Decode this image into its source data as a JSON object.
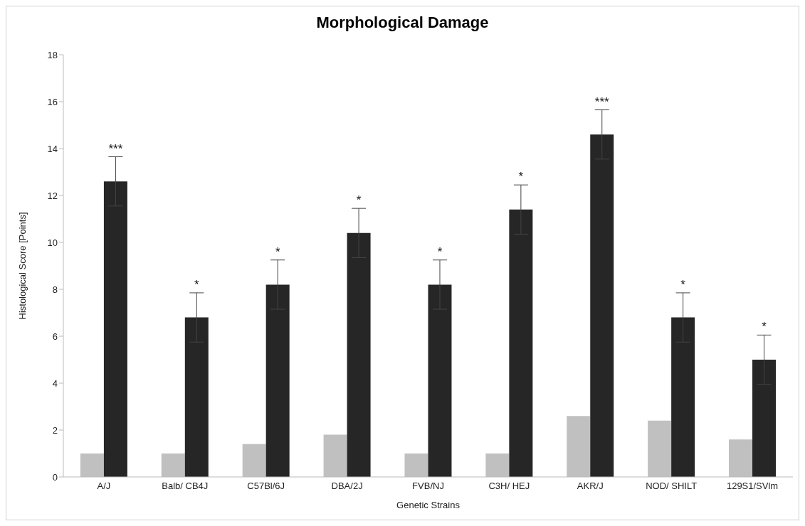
{
  "chart_data": {
    "type": "bar",
    "title": "Morphological Damage",
    "xlabel": "Genetic Strains",
    "ylabel": "Histological Score [Points]",
    "categories": [
      "A/J",
      "Balb/ CB4J",
      "C57Bl/6J",
      "DBA/2J",
      "FVB/NJ",
      "C3H/ HEJ",
      "AKR/J",
      "NOD/ SHILT",
      "129S1/SVlm"
    ],
    "series": [
      {
        "color": "#c0c0c0",
        "values": [
          1,
          1,
          1.4,
          1.8,
          1,
          1,
          2.6,
          2.4,
          1.6
        ]
      },
      {
        "color": "#262626",
        "values": [
          12.6,
          6.8,
          8.2,
          10.4,
          8.2,
          11.4,
          14.6,
          6.8,
          5.0
        ],
        "errors": [
          1.05,
          1.05,
          1.05,
          1.05,
          1.05,
          1.05,
          1.05,
          1.05,
          1.05
        ]
      }
    ],
    "annotations": [
      {
        "text": "***",
        "x": "A/J",
        "y": 12.6
      },
      {
        "text": "*",
        "x": "Balb/ CB4J",
        "y": 6.8
      },
      {
        "text": "*",
        "x": "C57Bl/6J",
        "y": 8.2
      },
      {
        "text": "*",
        "x": "DBA/2J",
        "y": 10.4
      },
      {
        "text": "*",
        "x": "FVB/NJ",
        "y": 8.2
      },
      {
        "text": "*",
        "x": "C3H/ HEJ",
        "y": 11.4
      },
      {
        "text": "***",
        "x": "AKR/J",
        "y": 14.6
      },
      {
        "text": "*",
        "x": "NOD/ SHILT",
        "y": 6.8
      },
      {
        "text": "*",
        "x": "129S1/SVlm",
        "y": 5.0
      }
    ],
    "ylim": [
      0,
      18
    ],
    "yticks": [
      0,
      2,
      4,
      6,
      8,
      10,
      12,
      14,
      16,
      18
    ],
    "grid": false,
    "legend": false
  }
}
